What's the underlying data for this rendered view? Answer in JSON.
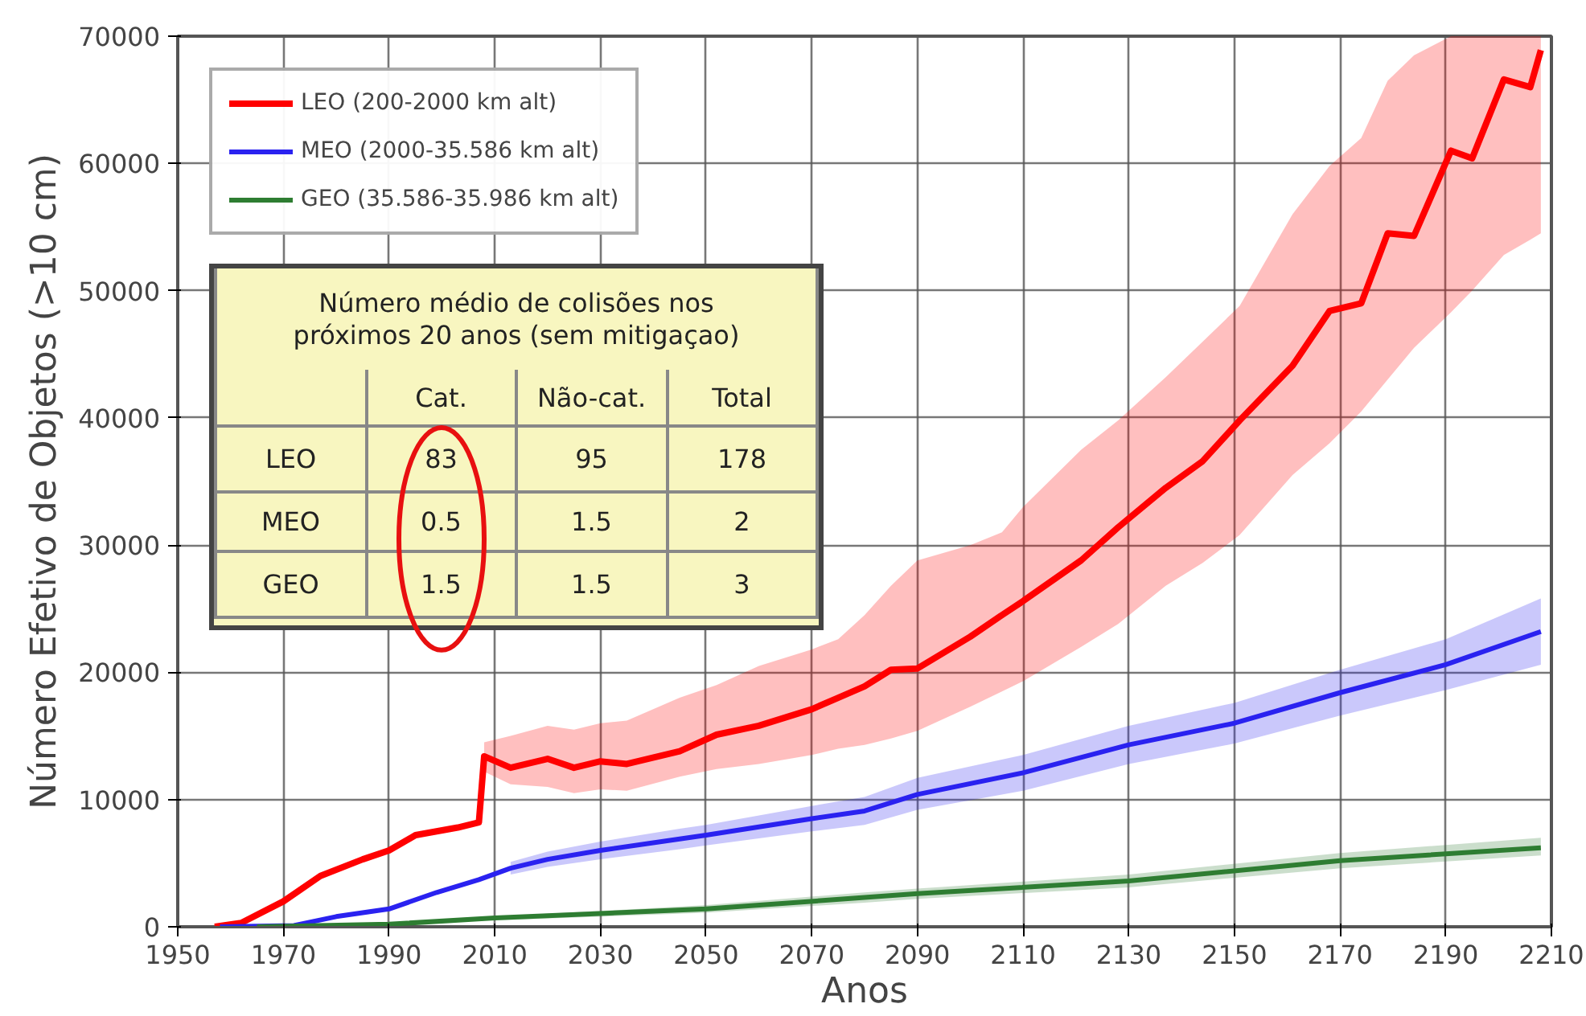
{
  "chart_data": {
    "type": "line",
    "xlabel": "Anos",
    "ylabel": "Número Efetivo de Objetos (>10 cm)",
    "xlim": [
      1950,
      2210
    ],
    "xticks": [
      1950,
      1970,
      1990,
      2010,
      2030,
      2050,
      2070,
      2090,
      2110,
      2130,
      2150,
      2170,
      2190,
      2210
    ],
    "ylim": [
      0,
      70000
    ],
    "yticks": [
      0,
      10000,
      20000,
      30000,
      40000,
      50000,
      60000,
      70000
    ],
    "grid": true,
    "legend": "top left",
    "series": [
      {
        "name": "LEO (200-2000 km alt)",
        "color": "#ff0000",
        "x": [
          1957,
          1962,
          1970,
          1977,
          1985,
          1990,
          1995,
          2003,
          2007,
          2008,
          2013,
          2020,
          2025,
          2030,
          2035,
          2045,
          2052,
          2060,
          2070,
          2075,
          2080,
          2085,
          2090,
          2100,
          2106,
          2110,
          2121,
          2128,
          2137,
          2144,
          2151,
          2161,
          2168,
          2174,
          2179,
          2184,
          2191,
          2195,
          2201,
          2206,
          2208
        ],
        "values": [
          0,
          300,
          2000,
          4000,
          5300,
          6000,
          7200,
          7800,
          8200,
          13400,
          12500,
          13200,
          12500,
          13000,
          12800,
          13800,
          15100,
          15800,
          17100,
          18000,
          18900,
          20200,
          20300,
          22800,
          24500,
          25600,
          28800,
          31400,
          34500,
          36600,
          39800,
          44100,
          48400,
          49000,
          54500,
          54300,
          61000,
          60400,
          66600,
          66000,
          68900
        ],
        "upper": [
          null,
          null,
          null,
          null,
          null,
          null,
          null,
          null,
          null,
          14500,
          15000,
          15800,
          15500,
          16000,
          16200,
          18000,
          19000,
          20500,
          21800,
          22600,
          24500,
          26800,
          28800,
          30000,
          31000,
          33000,
          37500,
          39800,
          43200,
          46000,
          48800,
          56000,
          59800,
          62000,
          66500,
          68500,
          70000,
          70000,
          70000,
          70000,
          70000
        ],
        "lower": [
          null,
          null,
          null,
          null,
          null,
          null,
          null,
          null,
          null,
          12200,
          11200,
          11000,
          10500,
          10800,
          10700,
          11800,
          12400,
          12800,
          13500,
          14000,
          14300,
          14800,
          15400,
          17300,
          18500,
          19300,
          22000,
          23800,
          26800,
          28600,
          30800,
          35500,
          38000,
          40500,
          43000,
          45500,
          48300,
          50000,
          52800,
          54000,
          54500
        ]
      },
      {
        "name": "MEO (2000-35.586 km alt)",
        "color": "#2a22f0",
        "x": [
          1958,
          1972,
          1980,
          1990,
          1999,
          2007,
          2013,
          2020,
          2030,
          2045,
          2050,
          2070,
          2080,
          2090,
          2110,
          2130,
          2150,
          2170,
          2190,
          2208
        ],
        "values": [
          0,
          100,
          800,
          1400,
          2700,
          3700,
          4600,
          5300,
          6000,
          6900,
          7200,
          8500,
          9100,
          10400,
          12100,
          14300,
          16000,
          18400,
          20600,
          23200
        ],
        "upper": [
          null,
          null,
          null,
          null,
          null,
          null,
          5100,
          5900,
          6700,
          7700,
          8000,
          9500,
          10200,
          11700,
          13500,
          15800,
          17600,
          20200,
          22600,
          25800
        ],
        "lower": [
          null,
          null,
          null,
          null,
          null,
          null,
          4100,
          4700,
          5300,
          6100,
          6400,
          7500,
          8000,
          9200,
          10700,
          12800,
          14400,
          16600,
          18600,
          20600
        ]
      },
      {
        "name": "GEO (35.586-35.986 km alt)",
        "color": "#2e7d32",
        "x": [
          1965,
          1990,
          2010,
          2050,
          2080,
          2090,
          2130,
          2170,
          2208
        ],
        "values": [
          0,
          200,
          700,
          1400,
          2300,
          2600,
          3600,
          5200,
          6200
        ],
        "upper": [
          null,
          null,
          800,
          1700,
          2700,
          3000,
          4100,
          5800,
          7000
        ],
        "lower": [
          null,
          null,
          500,
          1100,
          1900,
          2200,
          3100,
          4600,
          5600
        ]
      }
    ],
    "annotations": [
      "Número médio de colisões nos\npróximos 20 anos (sem mitigaçao)",
      "Cat.",
      "Não-cat.",
      "Total",
      "LEO",
      "83",
      "95",
      "178",
      "MEO",
      "0.5",
      "1.5",
      "2",
      "GEO",
      "1.5",
      "1.5",
      "3"
    ]
  }
}
